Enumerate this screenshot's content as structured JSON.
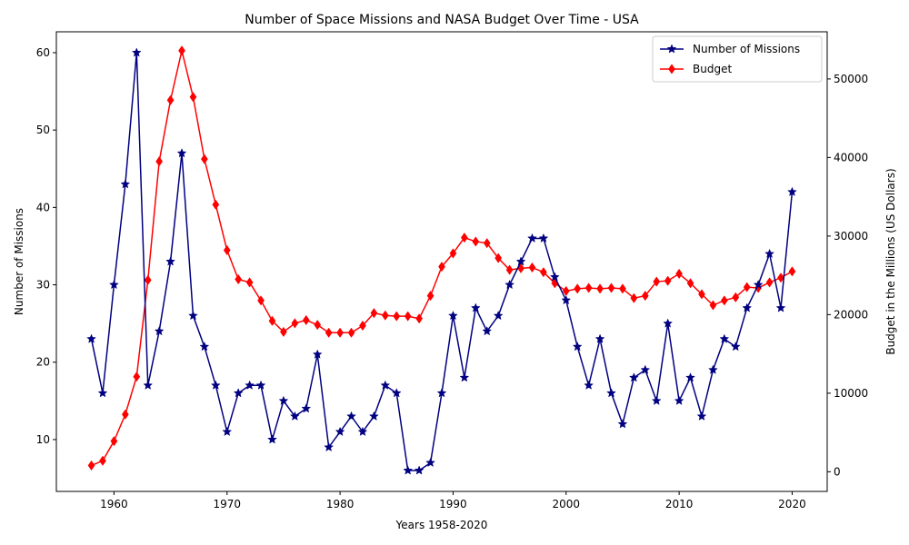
{
  "chart_data": {
    "type": "line",
    "title": "Number of Space Missions and NASA Budget Over Time - USA",
    "xlabel": "Years 1958-2020",
    "ylabel_left": "Number of Missions",
    "ylabel_right": "Budget in the Millions (US Dollars)",
    "xlim": [
      1954.9,
      2023.1
    ],
    "ylim_left": [
      3.3,
      62.7
    ],
    "ylim_right": [
      -2500,
      56000
    ],
    "x_ticks": [
      1960,
      1970,
      1980,
      1990,
      2000,
      2010,
      2020
    ],
    "y_left_ticks": [
      10,
      20,
      30,
      40,
      50,
      60
    ],
    "y_right_ticks": [
      0,
      10000,
      20000,
      30000,
      40000,
      50000
    ],
    "grid": false,
    "legend": "top-right",
    "x": [
      1958,
      1959,
      1960,
      1961,
      1962,
      1963,
      1964,
      1965,
      1966,
      1967,
      1968,
      1969,
      1970,
      1971,
      1972,
      1973,
      1974,
      1975,
      1976,
      1977,
      1978,
      1979,
      1980,
      1981,
      1982,
      1983,
      1984,
      1985,
      1986,
      1987,
      1988,
      1989,
      1990,
      1991,
      1992,
      1993,
      1994,
      1995,
      1996,
      1997,
      1998,
      1999,
      2000,
      2001,
      2002,
      2003,
      2004,
      2005,
      2006,
      2007,
      2008,
      2009,
      2010,
      2011,
      2012,
      2013,
      2014,
      2015,
      2016,
      2017,
      2018,
      2019,
      2020
    ],
    "series": [
      {
        "name": "Number of Missions",
        "axis": "left",
        "color": "#000080",
        "marker": "star",
        "values": [
          23,
          16,
          30,
          43,
          60,
          17,
          24,
          33,
          47,
          26,
          22,
          17,
          11,
          16,
          17,
          17,
          10,
          15,
          13,
          14,
          21,
          9,
          11,
          13,
          11,
          13,
          17,
          16,
          6,
          6,
          7,
          16,
          26,
          18,
          27,
          24,
          26,
          30,
          33,
          36,
          36,
          31,
          28,
          22,
          17,
          23,
          16,
          12,
          18,
          19,
          15,
          25,
          15,
          18,
          13,
          19,
          23,
          22,
          27,
          30,
          34,
          27,
          42
        ]
      },
      {
        "name": "Budget",
        "axis": "right",
        "color": "#ff0000",
        "marker": "diamond",
        "values": [
          800,
          1400,
          3900,
          7300,
          12100,
          24400,
          39500,
          47300,
          53600,
          47700,
          39800,
          34000,
          28200,
          24500,
          24100,
          21800,
          19200,
          17800,
          18900,
          19300,
          18700,
          17700,
          17700,
          17700,
          18600,
          20200,
          19900,
          19800,
          19800,
          19500,
          22400,
          26100,
          27800,
          29800,
          29300,
          29100,
          27200,
          25700,
          25900,
          26000,
          25400,
          24000,
          23000,
          23300,
          23400,
          23300,
          23400,
          23300,
          22100,
          22400,
          24200,
          24300,
          25200,
          24000,
          22600,
          21200,
          21800,
          22200,
          23500,
          23400,
          24100,
          24700,
          25500
        ]
      }
    ]
  }
}
